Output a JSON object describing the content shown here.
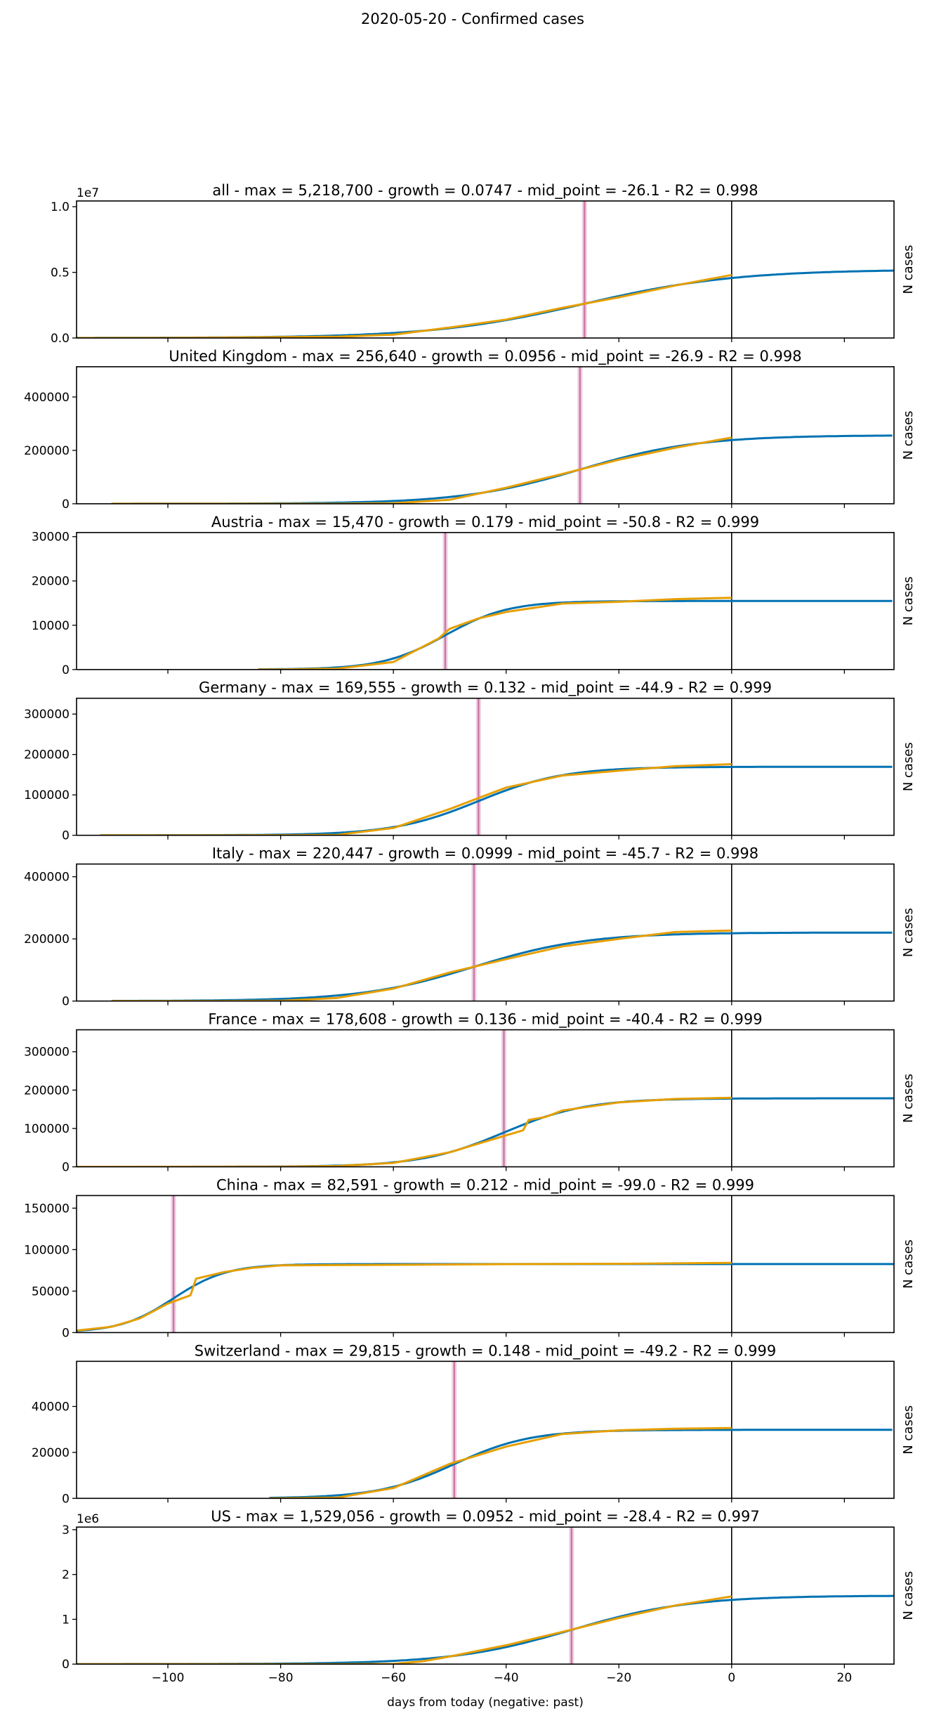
{
  "chart_data": {
    "type": "line",
    "title": "2020-05-20 - Confirmed cases",
    "xlabel": "days from today (negative: past)",
    "ylabel": "N cases",
    "xlim": [
      -116.2,
      28.8
    ],
    "xticks": [
      -100,
      -80,
      -60,
      -40,
      -20,
      0,
      20
    ],
    "xtick_labels": [
      "−100",
      "−80",
      "−60",
      "−40",
      "−20",
      "0",
      "20"
    ],
    "today_line_x": 0,
    "colors": {
      "fit": "#0072b2",
      "observed": "#e69f00",
      "mid_point": "#cc79a7",
      "today": "#000000"
    },
    "legend": "none",
    "panels": [
      {
        "title": "all - max = 5,218,700 - growth = 0.0747 - mid_point = -26.1 - R2 = 0.998",
        "max": 5218700,
        "growth": 0.0747,
        "mid_point": -26.1,
        "r2": 0.998,
        "fit_start": -116.2,
        "ylim": [
          0,
          10437400
        ],
        "offset_label": "1e7",
        "yticks": [
          0,
          5000000,
          10000000
        ],
        "ytick_labels": [
          "0.0",
          "0.5",
          "1.0"
        ],
        "observed": [
          [
            -116,
            2000
          ],
          [
            -100,
            8000
          ],
          [
            -90,
            30000
          ],
          [
            -80,
            70000
          ],
          [
            -70,
            100000
          ],
          [
            -60,
            250000
          ],
          [
            -50,
            800000
          ],
          [
            -40,
            1400000
          ],
          [
            -30,
            2300000
          ],
          [
            -20,
            3100000
          ],
          [
            -10,
            4000000
          ],
          [
            0,
            4800000
          ]
        ]
      },
      {
        "title": "United Kingdom - max = 256,640 - growth = 0.0956 - mid_point = -26.9 - R2 = 0.998",
        "max": 256640,
        "growth": 0.0956,
        "mid_point": -26.9,
        "r2": 0.998,
        "fit_start": -110,
        "ylim": [
          0,
          513280
        ],
        "offset_label": "",
        "yticks": [
          0,
          200000,
          400000
        ],
        "ytick_labels": [
          "0",
          "200000",
          "400000"
        ],
        "observed": [
          [
            -110,
            0
          ],
          [
            -80,
            10
          ],
          [
            -70,
            100
          ],
          [
            -60,
            2000
          ],
          [
            -50,
            15000
          ],
          [
            -40,
            60000
          ],
          [
            -30,
            112000
          ],
          [
            -20,
            165000
          ],
          [
            -10,
            210000
          ],
          [
            0,
            248000
          ]
        ]
      },
      {
        "title": "Austria - max = 15,470 - growth = 0.179 - mid_point = -50.8 - R2 = 0.999",
        "max": 15470,
        "growth": 0.179,
        "mid_point": -50.8,
        "r2": 0.999,
        "fit_start": -84,
        "ylim": [
          0,
          30940
        ],
        "offset_label": "",
        "yticks": [
          0,
          10000,
          20000,
          30000
        ],
        "ytick_labels": [
          "0",
          "10000",
          "20000",
          "30000"
        ],
        "observed": [
          [
            -84,
            5
          ],
          [
            -80,
            10
          ],
          [
            -70,
            200
          ],
          [
            -60,
            1700
          ],
          [
            -55,
            5000
          ],
          [
            -52,
            7000
          ],
          [
            -50,
            9200
          ],
          [
            -45,
            11500
          ],
          [
            -40,
            13000
          ],
          [
            -30,
            14900
          ],
          [
            -20,
            15300
          ],
          [
            -10,
            15900
          ],
          [
            0,
            16200
          ]
        ]
      },
      {
        "title": "Germany - max = 169,555 - growth = 0.132 - mid_point = -44.9 - R2 = 0.999",
        "max": 169555,
        "growth": 0.132,
        "mid_point": -44.9,
        "r2": 0.999,
        "fit_start": -112,
        "ylim": [
          0,
          339110
        ],
        "offset_label": "",
        "yticks": [
          0,
          100000,
          200000,
          300000
        ],
        "ytick_labels": [
          "0",
          "100000",
          "200000",
          "300000"
        ],
        "observed": [
          [
            -112,
            10
          ],
          [
            -90,
            20
          ],
          [
            -80,
            100
          ],
          [
            -70,
            1000
          ],
          [
            -60,
            18000
          ],
          [
            -50,
            65000
          ],
          [
            -40,
            118000
          ],
          [
            -30,
            148000
          ],
          [
            -20,
            160000
          ],
          [
            -10,
            171000
          ],
          [
            0,
            176000
          ]
        ]
      },
      {
        "title": "Italy - max = 220,447 - growth = 0.0999 - mid_point = -45.7 - R2 = 0.998",
        "max": 220447,
        "growth": 0.0999,
        "mid_point": -45.7,
        "r2": 0.998,
        "fit_start": -110,
        "ylim": [
          0,
          440894
        ],
        "offset_label": "",
        "yticks": [
          0,
          200000,
          400000
        ],
        "ytick_labels": [
          "0",
          "200000",
          "400000"
        ],
        "observed": [
          [
            -110,
            0
          ],
          [
            -90,
            10
          ],
          [
            -80,
            1000
          ],
          [
            -70,
            10000
          ],
          [
            -60,
            40000
          ],
          [
            -50,
            92000
          ],
          [
            -40,
            135000
          ],
          [
            -30,
            176000
          ],
          [
            -20,
            200000
          ],
          [
            -10,
            222000
          ],
          [
            0,
            227000
          ]
        ]
      },
      {
        "title": "France - max = 178,608 - growth = 0.136 - mid_point = -40.4 - R2 = 0.999",
        "max": 178608,
        "growth": 0.136,
        "mid_point": -40.4,
        "r2": 0.999,
        "fit_start": -116.2,
        "ylim": [
          0,
          357216
        ],
        "offset_label": "",
        "yticks": [
          0,
          100000,
          200000,
          300000
        ],
        "ytick_labels": [
          "0",
          "100000",
          "200000",
          "300000"
        ],
        "observed": [
          [
            -116,
            10
          ],
          [
            -80,
            300
          ],
          [
            -70,
            2000
          ],
          [
            -60,
            10000
          ],
          [
            -50,
            38000
          ],
          [
            -45,
            60000
          ],
          [
            -40,
            82000
          ],
          [
            -37,
            95000
          ],
          [
            -36,
            122000
          ],
          [
            -33,
            130000
          ],
          [
            -30,
            147000
          ],
          [
            -20,
            168000
          ],
          [
            -10,
            177000
          ],
          [
            0,
            180000
          ]
        ]
      },
      {
        "title": "China - max = 82,591 - growth = 0.212 - mid_point = -99.0 - R2 = 0.999",
        "max": 82591,
        "growth": 0.212,
        "mid_point": -99.0,
        "r2": 0.999,
        "fit_start": -116.2,
        "ylim": [
          0,
          165182
        ],
        "offset_label": "",
        "yticks": [
          0,
          50000,
          100000,
          150000
        ],
        "ytick_labels": [
          "0",
          "50000",
          "100000",
          "150000"
        ],
        "observed": [
          [
            -116,
            2500
          ],
          [
            -110,
            7000
          ],
          [
            -105,
            17000
          ],
          [
            -100,
            35000
          ],
          [
            -96,
            45000
          ],
          [
            -95,
            65000
          ],
          [
            -90,
            73000
          ],
          [
            -85,
            78000
          ],
          [
            -80,
            81000
          ],
          [
            -40,
            82500
          ],
          [
            -20,
            82900
          ],
          [
            0,
            84000
          ]
        ]
      },
      {
        "title": "Switzerland - max = 29,815 - growth = 0.148 - mid_point = -49.2 - R2 = 0.999",
        "max": 29815,
        "growth": 0.148,
        "mid_point": -49.2,
        "r2": 0.999,
        "fit_start": -82,
        "ylim": [
          0,
          59630
        ],
        "offset_label": "",
        "yticks": [
          0,
          20000,
          40000
        ],
        "ytick_labels": [
          "0",
          "20000",
          "40000"
        ],
        "observed": [
          [
            -82,
            5
          ],
          [
            -80,
            10
          ],
          [
            -70,
            300
          ],
          [
            -60,
            4500
          ],
          [
            -50,
            15000
          ],
          [
            -40,
            22500
          ],
          [
            -30,
            28000
          ],
          [
            -20,
            29600
          ],
          [
            -10,
            30300
          ],
          [
            0,
            30600
          ]
        ]
      },
      {
        "title": "US - max = 1,529,056 - growth = 0.0952 - mid_point = -28.4 - R2 = 0.997",
        "max": 1529056,
        "growth": 0.0952,
        "mid_point": -28.4,
        "r2": 0.997,
        "fit_start": -116.2,
        "ylim": [
          0,
          3058112
        ],
        "offset_label": "1e6",
        "yticks": [
          0,
          1000000,
          2000000,
          3000000
        ],
        "ytick_labels": [
          "0",
          "1",
          "2",
          "3"
        ],
        "observed": [
          [
            -116,
            0
          ],
          [
            -80,
            50
          ],
          [
            -70,
            500
          ],
          [
            -60,
            5000
          ],
          [
            -55,
            60000
          ],
          [
            -50,
            170000
          ],
          [
            -40,
            420000
          ],
          [
            -30,
            720000
          ],
          [
            -20,
            1030000
          ],
          [
            -10,
            1310000
          ],
          [
            0,
            1510000
          ]
        ]
      }
    ]
  }
}
